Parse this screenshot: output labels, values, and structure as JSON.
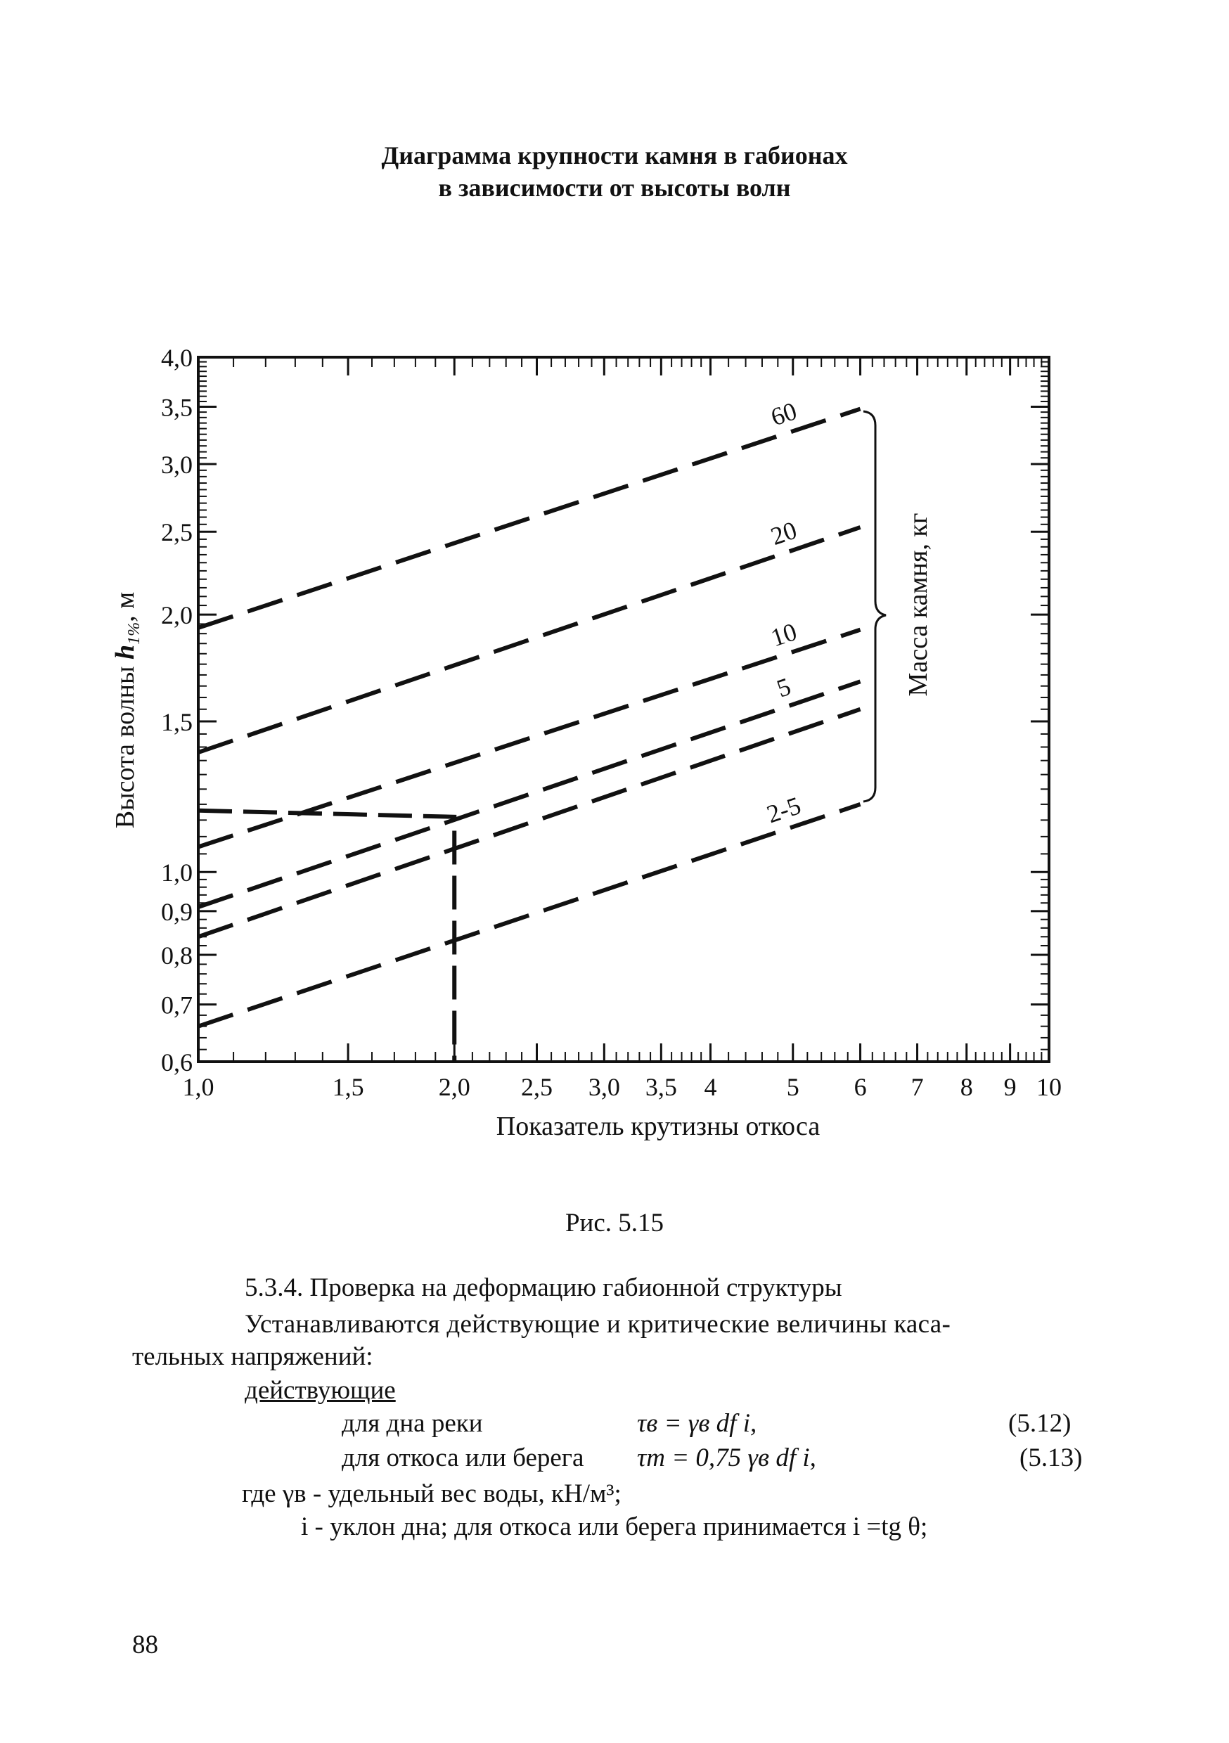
{
  "title_line1": "Диаграмма крупности камня в габионах",
  "title_line2": "в зависимости от высоты волн",
  "chart_data": {
    "type": "line",
    "title": "Диаграмма крупности камня в габионах в зависимости от высоты волн",
    "xlabel": "Показатель крутизны откоса",
    "ylabel_main": "Высота волны",
    "ylabel_var": "h",
    "ylabel_sub": "1%",
    "ylabel_unit": ", м",
    "right_label": "Масса камня, кг",
    "x_scale": "log",
    "y_scale": "log",
    "xlim": [
      1.0,
      10
    ],
    "ylim": [
      0.6,
      4.0
    ],
    "x_tick_labels": [
      {
        "value": 1.0,
        "label": "1,0"
      },
      {
        "value": 1.5,
        "label": "1,5"
      },
      {
        "value": 2.0,
        "label": "2,0"
      },
      {
        "value": 2.5,
        "label": "2,5"
      },
      {
        "value": 3.0,
        "label": "3,0"
      },
      {
        "value": 3.5,
        "label": "3,5"
      },
      {
        "value": 4,
        "label": "4"
      },
      {
        "value": 5,
        "label": "5"
      },
      {
        "value": 6,
        "label": "6"
      },
      {
        "value": 7,
        "label": "7"
      },
      {
        "value": 8,
        "label": "8"
      },
      {
        "value": 9,
        "label": "9"
      },
      {
        "value": 10,
        "label": "10"
      }
    ],
    "y_tick_labels": [
      {
        "value": 0.6,
        "label": "0,6"
      },
      {
        "value": 0.7,
        "label": "0,7"
      },
      {
        "value": 0.8,
        "label": "0,8"
      },
      {
        "value": 0.9,
        "label": "0,9"
      },
      {
        "value": 1.0,
        "label": "1,0"
      },
      {
        "value": 1.5,
        "label": "1,5"
      },
      {
        "value": 2.0,
        "label": "2,0"
      },
      {
        "value": 2.5,
        "label": "2,5"
      },
      {
        "value": 3.0,
        "label": "3,0"
      },
      {
        "value": 3.5,
        "label": "3,5"
      },
      {
        "value": 4.0,
        "label": "4,0"
      }
    ],
    "series": [
      {
        "name": "60",
        "x": [
          1.0,
          6.0
        ],
        "y": [
          1.93,
          3.48
        ]
      },
      {
        "name": "20",
        "x": [
          1.0,
          6.0
        ],
        "y": [
          1.38,
          2.53
        ]
      },
      {
        "name": "10",
        "x": [
          1.0,
          6.0
        ],
        "y": [
          1.07,
          1.92
        ]
      },
      {
        "name": "5",
        "x": [
          1.0,
          6.0
        ],
        "y": [
          0.91,
          1.67
        ]
      },
      {
        "name": "",
        "x": [
          1.0,
          6.0
        ],
        "y": [
          0.84,
          1.55
        ]
      },
      {
        "name": "2-5",
        "x": [
          1.0,
          6.0
        ],
        "y": [
          0.66,
          1.2
        ]
      }
    ],
    "reference_line": {
      "x": [
        1.0,
        2.0,
        2.0
      ],
      "y": [
        1.18,
        1.16,
        0.6
      ]
    },
    "grid": false,
    "legend": "right-bracket"
  },
  "caption": "Рис. 5.15",
  "text": {
    "heading": "5.3.4. Проверка на деформацию габионной структуры",
    "para_line1": "Устанавливаются действующие и критические величины каса-",
    "para_line2": "тельных напряжений:",
    "acting": "действующие",
    "f1_label": "для дна реки",
    "f1_formula": "τв = γв df i,",
    "f1_num": "(5.12)",
    "f2_label": "для откоса или берега",
    "f2_formula": "τm = 0,75 γв df i,",
    "f2_num": "(5.13)",
    "where1": "где γв - удельный вес воды, кН/м³;",
    "where2": "i  - уклон дна; для откоса или берега принимается i =tg θ;"
  },
  "page_number": "88"
}
